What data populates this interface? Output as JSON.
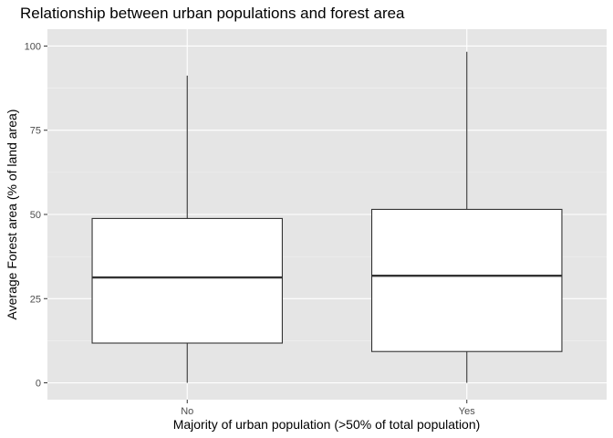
{
  "chart_data": {
    "type": "boxplot",
    "title": "Relationship between urban populations and forest area",
    "xlabel": "Majority of urban population (>50% of total population)",
    "ylabel": "Average Forest area (% of land area)",
    "categories": [
      "No",
      "Yes"
    ],
    "ylim": [
      -5,
      105
    ],
    "yticks": [
      0,
      25,
      50,
      75,
      100
    ],
    "boxes": [
      {
        "category": "No",
        "min": 0,
        "q1": 11.8,
        "median": 31.3,
        "q3": 48.8,
        "max": 91.2
      },
      {
        "category": "Yes",
        "min": 0,
        "q1": 9.3,
        "median": 31.8,
        "q3": 51.5,
        "max": 98.3
      }
    ],
    "grid": true,
    "background": "#e5e5e5",
    "box_fill": "#ffffff",
    "box_stroke": "#333333"
  }
}
